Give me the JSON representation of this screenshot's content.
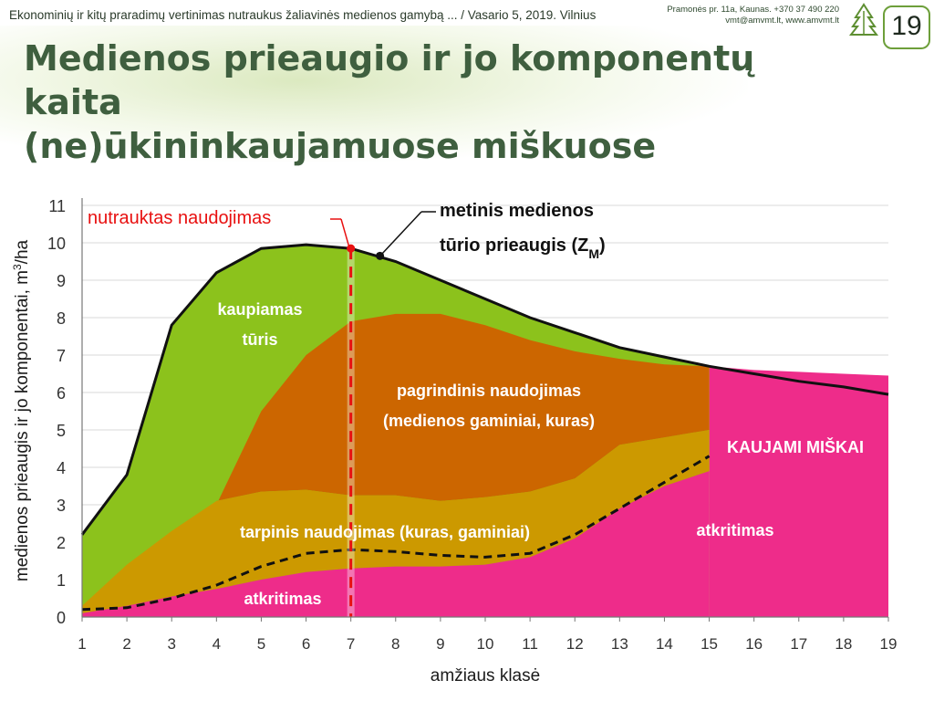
{
  "header": {
    "topline": "Ekonominių ir kitų praradimų vertinimas nutraukus žaliavinės medienos gamybą ... / Vasario 5, 2019.  Vilnius",
    "address_line1": "Pramonės pr. 11a, Kaunas. +370 37 490 220",
    "address_line2": "vmt@amvmt.lt, www.amvmt.lt",
    "slide_number": "19"
  },
  "title_line1": "Medienos prieaugio ir jo komponentų kaita",
  "title_line2": "(ne)ūkininkaujamuose miškuose",
  "colors": {
    "green": "#8cc21c",
    "orange": "#cc6600",
    "gold": "#cc9900",
    "pink": "#ee2c8a",
    "red": "#e81010"
  },
  "chart_data": {
    "type": "area",
    "xlabel": "amžiaus klasė",
    "ylabel_main": "medienos prieaugis ir jo komponentai, m",
    "ylabel_sup": "3",
    "ylabel_end": "/ha",
    "xlim": [
      1,
      19
    ],
    "ylim": [
      0,
      11
    ],
    "x_ticks": [
      "1",
      "2",
      "3",
      "4",
      "5",
      "6",
      "7",
      "8",
      "9",
      "10",
      "11",
      "12",
      "13",
      "14",
      "15",
      "16",
      "17",
      "18",
      "19"
    ],
    "y_ticks": [
      "0",
      "1",
      "2",
      "3",
      "4",
      "5",
      "6",
      "7",
      "8",
      "9",
      "10",
      "11"
    ],
    "grid": true,
    "series": {
      "total_unmanaged": {
        "x": [
          1,
          2,
          2.5,
          3,
          4,
          5,
          6,
          7,
          8,
          9,
          10,
          11,
          12,
          13,
          14,
          15,
          16,
          17,
          18,
          19
        ],
        "y": [
          2.2,
          3.8,
          5.8,
          7.8,
          9.2,
          9.85,
          9.95,
          9.85,
          9.5,
          9.0,
          8.5,
          8.0,
          7.6,
          7.2,
          6.95,
          6.7,
          6.5,
          6.3,
          6.15,
          5.95
        ]
      },
      "managed_top": {
        "x": [
          15,
          16,
          17,
          18,
          19
        ],
        "y": [
          6.7,
          6.6,
          6.55,
          6.5,
          6.45
        ]
      },
      "main_use_top": {
        "x": [
          4,
          5,
          6,
          7,
          8,
          9,
          10,
          11,
          12,
          13,
          14,
          15
        ],
        "y": [
          3.0,
          5.5,
          7.0,
          7.9,
          8.1,
          8.1,
          7.8,
          7.4,
          7.1,
          6.9,
          6.75,
          6.7
        ]
      },
      "intermediate_top": {
        "x": [
          1,
          2,
          3,
          4,
          5,
          6,
          7,
          8,
          9,
          10,
          11,
          12,
          13,
          14,
          15
        ],
        "y": [
          0.3,
          1.4,
          2.3,
          3.1,
          3.35,
          3.4,
          3.25,
          3.25,
          3.1,
          3.2,
          3.35,
          3.7,
          4.6,
          4.8,
          5.0
        ]
      },
      "mortality_top": {
        "x": [
          1,
          2,
          3,
          4,
          5,
          6,
          7,
          8,
          9,
          10,
          11,
          12,
          13,
          14,
          15
        ],
        "y": [
          0.1,
          0.3,
          0.55,
          0.75,
          1.0,
          1.2,
          1.3,
          1.35,
          1.35,
          1.4,
          1.6,
          2.1,
          2.9,
          3.5,
          3.9
        ]
      },
      "mortality_unmanaged": {
        "x": [
          1,
          2,
          3,
          4,
          5,
          6,
          7,
          8,
          9,
          10,
          11,
          12,
          13,
          14,
          15
        ],
        "y": [
          0.2,
          0.25,
          0.5,
          0.85,
          1.35,
          1.7,
          1.8,
          1.75,
          1.65,
          1.6,
          1.7,
          2.2,
          2.9,
          3.6,
          4.3
        ]
      },
      "marker_point": {
        "x": 7.65,
        "y": 9.65
      }
    },
    "cutoff_x": 7,
    "labels": {
      "cutoff": "nutrauktas naudojimas",
      "growth_line1": "metinis medienos",
      "growth_line2": "tūrio prieaugis (Z",
      "growth_sub": "M",
      "growth_end": ")",
      "accumulated1": "kaupiamas",
      "accumulated2": "tūris",
      "main_use1": "pagrindinis naudojimas",
      "main_use2": "(medienos gaminiai, kuras)",
      "managed": "KAUJAMI MIŠKAI",
      "intermediate": "tarpinis naudojimas (kuras, gaminiai)",
      "mortality_right": "atkritimas",
      "mortality_left": "atkritimas"
    }
  }
}
